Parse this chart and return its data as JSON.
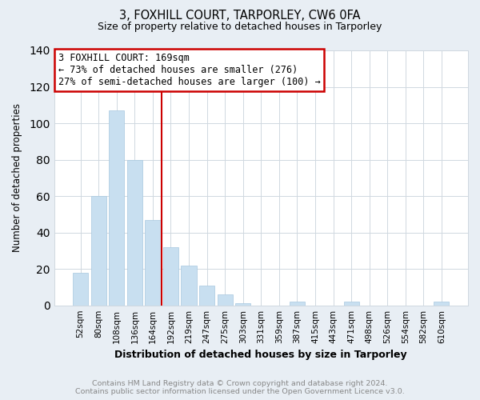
{
  "title": "3, FOXHILL COURT, TARPORLEY, CW6 0FA",
  "subtitle": "Size of property relative to detached houses in Tarporley",
  "xlabel": "Distribution of detached houses by size in Tarporley",
  "ylabel": "Number of detached properties",
  "bar_labels": [
    "52sqm",
    "80sqm",
    "108sqm",
    "136sqm",
    "164sqm",
    "192sqm",
    "219sqm",
    "247sqm",
    "275sqm",
    "303sqm",
    "331sqm",
    "359sqm",
    "387sqm",
    "415sqm",
    "443sqm",
    "471sqm",
    "498sqm",
    "526sqm",
    "554sqm",
    "582sqm",
    "610sqm"
  ],
  "bar_values": [
    18,
    60,
    107,
    80,
    47,
    32,
    22,
    11,
    6,
    1,
    0,
    0,
    2,
    0,
    0,
    2,
    0,
    0,
    0,
    0,
    2
  ],
  "bar_color": "#c8dff0",
  "bar_edge_color": "#a8c8e0",
  "vline_x": 4.5,
  "vline_color": "#cc0000",
  "ylim": [
    0,
    140
  ],
  "yticks": [
    0,
    20,
    40,
    60,
    80,
    100,
    120,
    140
  ],
  "annotation_title": "3 FOXHILL COURT: 169sqm",
  "annotation_line1": "← 73% of detached houses are smaller (276)",
  "annotation_line2": "27% of semi-detached houses are larger (100) →",
  "annotation_box_color": "#ffffff",
  "annotation_box_edge_color": "#cc0000",
  "footer_line1": "Contains HM Land Registry data © Crown copyright and database right 2024.",
  "footer_line2": "Contains public sector information licensed under the Open Government Licence v3.0.",
  "background_color": "#e8eef4",
  "plot_background_color": "#ffffff",
  "grid_color": "#d0d8e0"
}
